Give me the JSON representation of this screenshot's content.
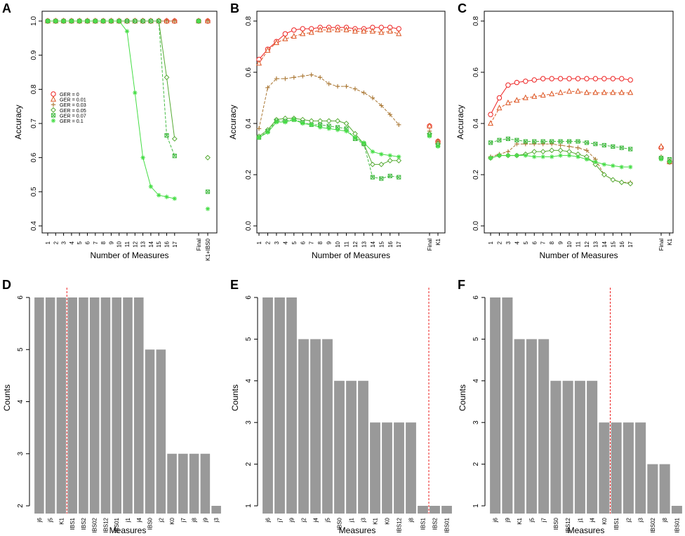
{
  "chart_data": [
    {
      "panel": "A",
      "type": "line",
      "xlabel": "Number of Measures",
      "ylabel": "Accuracy",
      "ylim": [
        0.4,
        1.0
      ],
      "yticks": [
        "0.4",
        "0.5",
        "0.6",
        "0.7",
        "0.8",
        "0.9",
        "1.0"
      ],
      "x_labels": [
        "1",
        "2",
        "3",
        "4",
        "5",
        "6",
        "7",
        "8",
        "9",
        "10",
        "11",
        "12",
        "13",
        "14",
        "15",
        "16",
        "17"
      ],
      "extra_labels": [
        "Final",
        "K1+IBS0"
      ],
      "legend_position": "middle-left",
      "series": [
        {
          "name": "GER = 0",
          "color": "#ee2222",
          "marker": "circle",
          "values": [
            1,
            1,
            1,
            1,
            1,
            1,
            1,
            1,
            1,
            1,
            1,
            1,
            1,
            1,
            1,
            1,
            1
          ],
          "extra": [
            1,
            1
          ]
        },
        {
          "name": "GER = 0.01",
          "color": "#dd5522",
          "marker": "triangle",
          "values": [
            1,
            1,
            1,
            1,
            1,
            1,
            1,
            1,
            1,
            1,
            1,
            1,
            1,
            1,
            1,
            1,
            1
          ],
          "extra": [
            1,
            1
          ]
        },
        {
          "name": "GER = 0.03",
          "color": "#aa7733",
          "marker": "plus",
          "values": [
            1,
            1,
            1,
            1,
            1,
            1,
            1,
            1,
            1,
            1,
            1,
            1,
            1,
            1,
            1,
            1,
            1
          ],
          "extra": [
            1,
            1
          ]
        },
        {
          "name": "GER = 0.05",
          "color": "#55aa33",
          "marker": "diamond",
          "values": [
            1,
            1,
            1,
            1,
            1,
            1,
            1,
            1,
            1,
            1,
            1,
            1,
            1,
            1,
            1,
            0.835,
            0.655
          ],
          "extra": [
            1,
            0.6
          ]
        },
        {
          "name": "GER = 0.07",
          "color": "#44bb44",
          "marker": "square",
          "values": [
            1,
            1,
            1,
            1,
            1,
            1,
            1,
            1,
            1,
            1,
            1,
            1,
            1,
            1,
            1,
            0.665,
            0.605
          ],
          "extra": [
            1,
            0.5
          ]
        },
        {
          "name": "GER = 0.1",
          "color": "#44dd44",
          "marker": "asterisk",
          "values": [
            1,
            1,
            1,
            1,
            1,
            1,
            1,
            1,
            1,
            1,
            0.97,
            0.79,
            0.6,
            0.515,
            0.49,
            0.485,
            0.48
          ],
          "extra": [
            1,
            0.45
          ]
        }
      ]
    },
    {
      "panel": "B",
      "type": "line",
      "xlabel": "Number of Measures",
      "ylabel": "Accuracy",
      "ylim": [
        0.0,
        0.8
      ],
      "yticks": [
        "0.0",
        "0.2",
        "0.4",
        "0.6",
        "0.8"
      ],
      "x_labels": [
        "1",
        "2",
        "3",
        "4",
        "5",
        "6",
        "7",
        "8",
        "9",
        "10",
        "11",
        "12",
        "13",
        "14",
        "15",
        "16",
        "17"
      ],
      "extra_labels": [
        "Final",
        "K1"
      ],
      "series": [
        {
          "name": "GER = 0",
          "color": "#ee2222",
          "marker": "circle",
          "values": [
            0.65,
            0.69,
            0.72,
            0.75,
            0.765,
            0.77,
            0.77,
            0.775,
            0.775,
            0.775,
            0.775,
            0.77,
            0.77,
            0.775,
            0.775,
            0.775,
            0.77
          ],
          "extra": [
            0.39,
            0.33
          ]
        },
        {
          "name": "GER = 0.01",
          "color": "#dd5522",
          "marker": "triangle",
          "values": [
            0.635,
            0.685,
            0.715,
            0.73,
            0.74,
            0.75,
            0.755,
            0.765,
            0.765,
            0.765,
            0.765,
            0.76,
            0.76,
            0.76,
            0.755,
            0.76,
            0.75
          ],
          "extra": [
            0.39,
            0.33
          ]
        },
        {
          "name": "GER = 0.03",
          "color": "#aa7733",
          "marker": "plus",
          "values": [
            0.38,
            0.54,
            0.575,
            0.575,
            0.58,
            0.585,
            0.59,
            0.58,
            0.555,
            0.545,
            0.545,
            0.535,
            0.52,
            0.5,
            0.47,
            0.435,
            0.395
          ],
          "extra": [
            0.37,
            0.33
          ]
        },
        {
          "name": "GER = 0.05",
          "color": "#55aa33",
          "marker": "diamond",
          "values": [
            0.35,
            0.375,
            0.415,
            0.42,
            0.42,
            0.415,
            0.41,
            0.41,
            0.41,
            0.41,
            0.4,
            0.36,
            0.32,
            0.24,
            0.24,
            0.255,
            0.255
          ],
          "extra": [
            0.36,
            0.32
          ]
        },
        {
          "name": "GER = 0.07",
          "color": "#44bb44",
          "marker": "square",
          "values": [
            0.345,
            0.37,
            0.41,
            0.41,
            0.415,
            0.405,
            0.395,
            0.395,
            0.39,
            0.385,
            0.38,
            0.34,
            0.32,
            0.19,
            0.185,
            0.195,
            0.19
          ],
          "extra": [
            0.355,
            0.315
          ]
        },
        {
          "name": "GER = 0.1",
          "color": "#44dd44",
          "marker": "asterisk",
          "values": [
            0.345,
            0.365,
            0.405,
            0.405,
            0.415,
            0.4,
            0.395,
            0.385,
            0.38,
            0.375,
            0.37,
            0.345,
            0.325,
            0.29,
            0.28,
            0.275,
            0.27
          ],
          "extra": [
            0.35,
            0.31
          ]
        }
      ]
    },
    {
      "panel": "C",
      "type": "line",
      "xlabel": "Number of Measures",
      "ylabel": "Accuracy",
      "ylim": [
        0.0,
        0.8
      ],
      "yticks": [
        "0.0",
        "0.2",
        "0.4",
        "0.6",
        "0.8"
      ],
      "x_labels": [
        "1",
        "2",
        "3",
        "4",
        "5",
        "6",
        "7",
        "8",
        "9",
        "10",
        "11",
        "12",
        "13",
        "14",
        "15",
        "16",
        "17"
      ],
      "extra_labels": [
        "Final",
        "K1"
      ],
      "series": [
        {
          "name": "GER = 0",
          "color": "#ee2222",
          "marker": "circle",
          "values": [
            0.435,
            0.5,
            0.55,
            0.56,
            0.565,
            0.57,
            0.575,
            0.575,
            0.575,
            0.575,
            0.575,
            0.575,
            0.575,
            0.575,
            0.575,
            0.575,
            0.57
          ],
          "extra": [
            0.305,
            0.25
          ]
        },
        {
          "name": "GER = 0.01",
          "color": "#dd5522",
          "marker": "triangle",
          "values": [
            0.4,
            0.46,
            0.48,
            0.49,
            0.5,
            0.505,
            0.51,
            0.515,
            0.52,
            0.525,
            0.525,
            0.52,
            0.52,
            0.52,
            0.52,
            0.52,
            0.52
          ],
          "extra": [
            0.31,
            0.25
          ]
        },
        {
          "name": "GER = 0.03",
          "color": "#aa7733",
          "marker": "plus",
          "values": [
            0.27,
            0.28,
            0.29,
            0.32,
            0.32,
            0.32,
            0.32,
            0.32,
            0.315,
            0.31,
            0.305,
            0.295,
            0.26,
            0.2,
            0.18,
            0.17,
            0.17
          ],
          "extra": [
            0.27,
            0.255
          ]
        },
        {
          "name": "GER = 0.05",
          "color": "#55aa33",
          "marker": "diamond",
          "values": [
            0.265,
            0.275,
            0.275,
            0.275,
            0.28,
            0.29,
            0.29,
            0.295,
            0.295,
            0.29,
            0.28,
            0.27,
            0.24,
            0.2,
            0.18,
            0.17,
            0.165
          ],
          "extra": [
            0.265,
            0.25
          ]
        },
        {
          "name": "GER = 0.07",
          "color": "#44bb44",
          "marker": "square",
          "values": [
            0.325,
            0.335,
            0.34,
            0.335,
            0.33,
            0.33,
            0.33,
            0.33,
            0.33,
            0.33,
            0.33,
            0.325,
            0.32,
            0.315,
            0.31,
            0.305,
            0.3
          ],
          "extra": [
            0.265,
            0.26
          ]
        },
        {
          "name": "GER = 0.1",
          "color": "#44dd44",
          "marker": "asterisk",
          "values": [
            0.265,
            0.275,
            0.275,
            0.275,
            0.275,
            0.27,
            0.27,
            0.27,
            0.275,
            0.275,
            0.27,
            0.26,
            0.25,
            0.24,
            0.235,
            0.23,
            0.23
          ],
          "extra": [
            0.26,
            0.25
          ]
        }
      ]
    },
    {
      "panel": "D",
      "type": "bar",
      "xlabel": "Measures",
      "ylabel": "Counts",
      "ylim": [
        2,
        6
      ],
      "yticks": [
        "2",
        "3",
        "4",
        "5",
        "6"
      ],
      "cutoff_after_index": 2,
      "categories": [
        "j6",
        "j5",
        "K1",
        "IBS1",
        "IBS2",
        "IBS02",
        "IBS12",
        "IBS01",
        "j1",
        "j4",
        "IBS0",
        "j2",
        "K0",
        "j7",
        "j8",
        "j9",
        "j3"
      ],
      "values": [
        6,
        6,
        6,
        6,
        6,
        6,
        6,
        6,
        6,
        6,
        5,
        5,
        3,
        3,
        3,
        3,
        2
      ]
    },
    {
      "panel": "E",
      "type": "bar",
      "xlabel": "Measures",
      "ylabel": "Counts",
      "ylim": [
        1,
        6
      ],
      "yticks": [
        "1",
        "2",
        "3",
        "4",
        "5",
        "6"
      ],
      "cutoff_after_index": 13,
      "categories": [
        "j6",
        "j7",
        "j9",
        "j2",
        "j4",
        "j5",
        "IBS0",
        "j1",
        "j3",
        "K1",
        "K0",
        "IBS12",
        "j8",
        "IBS1",
        "IBS2",
        "IBS01"
      ],
      "values": [
        6,
        6,
        6,
        5,
        5,
        5,
        4,
        4,
        4,
        3,
        3,
        3,
        3,
        1,
        1,
        1
      ]
    },
    {
      "panel": "F",
      "type": "bar",
      "xlabel": "Measures",
      "ylabel": "Counts",
      "ylim": [
        1,
        6
      ],
      "yticks": [
        "1",
        "2",
        "3",
        "4",
        "5",
        "6"
      ],
      "cutoff_after_index": 9,
      "categories": [
        "j6",
        "j9",
        "K1",
        "j5",
        "j7",
        "IBS0",
        "IBS12",
        "j1",
        "j4",
        "K0",
        "IBS1",
        "j2",
        "j3",
        "IBS02",
        "j8",
        "IBS01"
      ],
      "values": [
        6,
        6,
        5,
        5,
        5,
        4,
        4,
        4,
        4,
        3,
        3,
        3,
        3,
        2,
        2,
        1
      ]
    }
  ]
}
